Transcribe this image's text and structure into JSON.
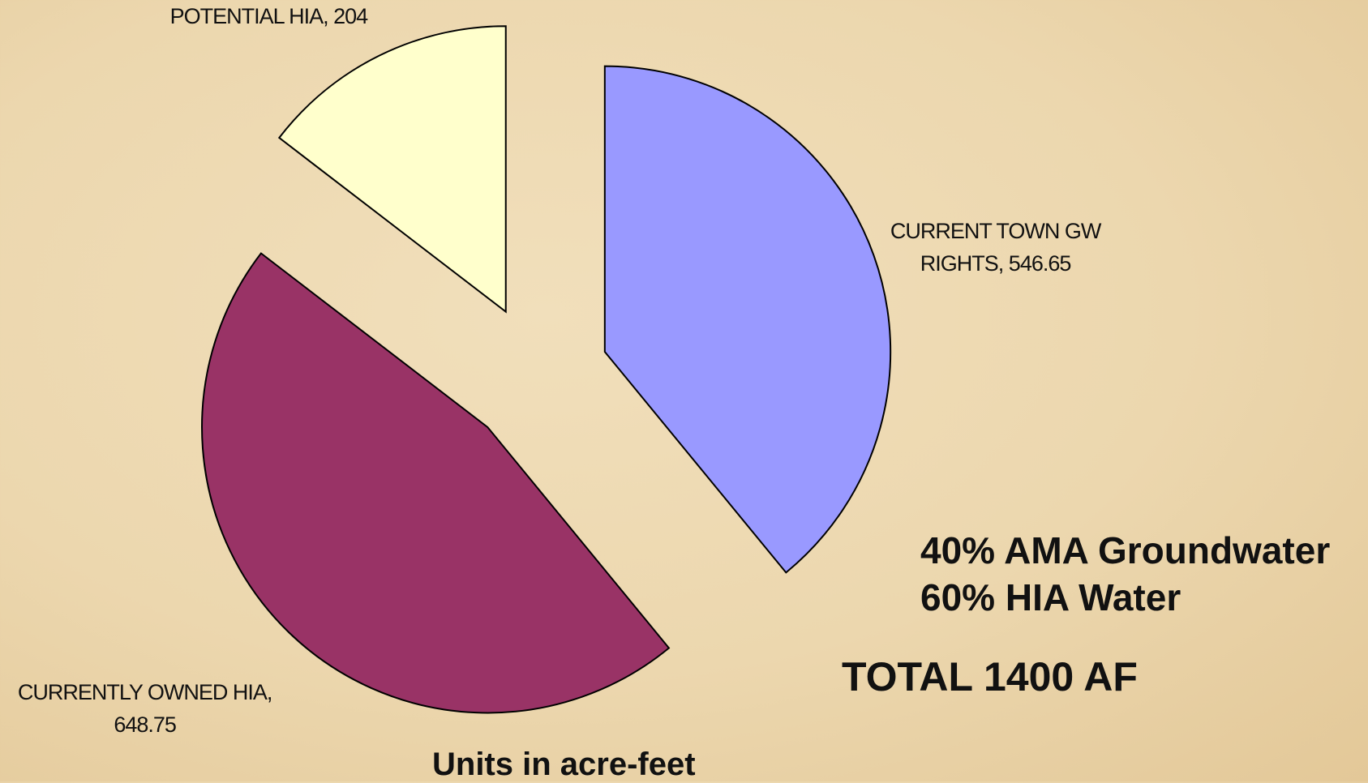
{
  "chart_data": {
    "type": "pie",
    "values": [
      546.65,
      648.75,
      204
    ],
    "value_labels": [
      "CURRENT TOWN GW RIGHTS, 546.65",
      "CURRENTLY OWNED HIA, 648.75",
      "POTENTIAL HIA, 204"
    ],
    "colors": [
      "#9999ff",
      "#993366",
      "#ffffcc"
    ],
    "annotations": [
      "40% AMA Groundwater",
      "60% HIA Water",
      "TOTAL 1400 AF"
    ],
    "footer": "Units in acre-feet"
  }
}
